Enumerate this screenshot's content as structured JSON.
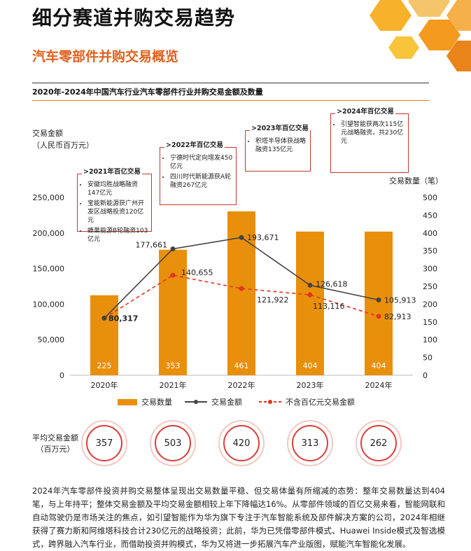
{
  "page": {
    "title": "细分赛道并购交易趋势",
    "subtitle": "汽车零部件并购交易概览"
  },
  "chart_data": {
    "type": "bar",
    "title": "2020年-2024年中国汽车行业汽车零部件行业并购交易金额及数量",
    "categories": [
      "2020年",
      "2021年",
      "2022年",
      "2023年",
      "2024年"
    ],
    "ylabel_left": "交易金额\n（人民币百万元）",
    "ylabel_right": "交易数量（笔）",
    "ylim_left": [
      0,
      250000
    ],
    "ylim_right": [
      0,
      500
    ],
    "left_ticks": [
      "0",
      "50,000",
      "100,000",
      "150,000",
      "200,000",
      "250,000"
    ],
    "right_ticks": [
      "0",
      "50",
      "100",
      "150",
      "200",
      "250",
      "300",
      "350",
      "400",
      "450",
      "500"
    ],
    "series": [
      {
        "name": "交易数量",
        "kind": "bar",
        "axis": "right",
        "color": "#e8900c",
        "values": [
          225,
          353,
          461,
          404,
          404
        ],
        "labels": [
          "225",
          "353",
          "461",
          "404",
          "404"
        ]
      },
      {
        "name": "交易金额",
        "kind": "line",
        "axis": "left",
        "color": "#444444",
        "values": [
          80317,
          177661,
          193671,
          126618,
          105913
        ],
        "labels": [
          "80,317",
          "177,661",
          "193,671",
          "126,618",
          "105,913"
        ]
      },
      {
        "name": "不含百亿元交易金额",
        "kind": "dashed",
        "axis": "left",
        "color": "#e0351f",
        "values": [
          80317,
          140655,
          121922,
          113116,
          82913
        ],
        "labels": [
          "80,317",
          "140,655",
          "121,922",
          "113,116",
          "82,913"
        ]
      }
    ],
    "legend_position": "bottom"
  },
  "annotations": [
    {
      "head": ">2021年百亿交易",
      "items": [
        "安徽均胜战略融资147亿元",
        "宝能新能源获广州开发区战略投资120亿元",
        "蜂巢能源B轮融资103亿元"
      ]
    },
    {
      "head": ">2022年百亿交易",
      "items": [
        "宁德时代定向增发450亿元",
        "四川时代新能源获A轮融资267亿元"
      ]
    },
    {
      "head": ">2023年百亿交易",
      "items": [
        "积塔半导体获战略融资135亿元"
      ]
    },
    {
      "head": ">2024年百亿交易",
      "items": [
        "引望智能获两次115亿元战略融资，共230亿元"
      ]
    }
  ],
  "average": {
    "label": "平均交易金额\n（百万元）",
    "values": [
      "357",
      "503",
      "420",
      "313",
      "262"
    ]
  },
  "paragraph": "2024年汽车零部件投资并购交易整体呈现出交易数量平稳、但交易体量有所缩减的态势：整年交易数量达到404笔，与上年持平；整体交易金额及平均交易金额相较上年下降幅达16%。从零部件领域的百亿交易来看，智能网联和自动驾驶仍是市场关注的焦点，如引望智能作为华为旗下专注于汽车智能系统及部件解决方案的公司，2024年相继获得了赛力斯和阿维塔科技合计230亿元的战略投资；此前，华为已凭借零部件模式、Huawei Inside模式及智选模式，跨界融入汽车行业，而借助投资并购模式，华为又将进一步拓展汽车产业版图，赋能汽车智能化发展。"
}
